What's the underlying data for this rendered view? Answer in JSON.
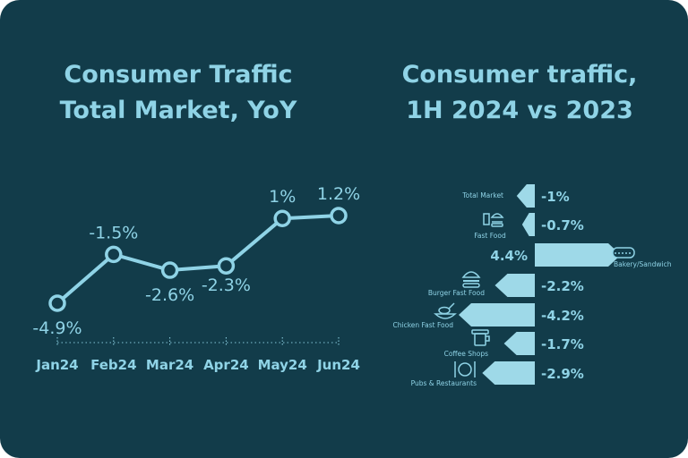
{
  "colors": {
    "background": "#123c4a",
    "accent": "#8fd3e6",
    "bar_fill": "#9ed9e8"
  },
  "left_title": [
    "Consumer Traffic",
    "Total Market, YoY"
  ],
  "right_title": [
    "Consumer traffic,",
    "1H 2024 vs 2023"
  ],
  "chart_data": [
    {
      "type": "line",
      "title": "Consumer Traffic Total Market, YoY",
      "categories": [
        "Jan24",
        "Feb24",
        "Mar24",
        "Apr24",
        "May24",
        "Jun24"
      ],
      "values": [
        -4.9,
        -1.5,
        -2.6,
        -2.3,
        1,
        1.2
      ],
      "data_labels": [
        "-4.9%",
        "-1.5%",
        "-2.6%",
        "-2.3%",
        "1%",
        "1.2%"
      ],
      "ylim": [
        -4.9,
        1.2
      ],
      "grid": false
    },
    {
      "type": "bar",
      "orientation": "horizontal",
      "title": "Consumer traffic, 1H 2024 vs 2023",
      "categories": [
        "Total Market",
        "Fast Food",
        "Bakery/Sandwich",
        "Burger Fast Food",
        "Chicken Fast Food",
        "Coffee Shops",
        "Pubs & Restaurants"
      ],
      "icons": [
        "",
        "fast-food-icon",
        "sandwich-icon",
        "burger-icon",
        "chicken-icon",
        "coffee-icon",
        "plate-cutlery-icon"
      ],
      "values": [
        -1,
        -0.7,
        4.4,
        -2.2,
        -4.2,
        -1.7,
        -2.9
      ],
      "data_labels": [
        "-1%",
        "-0.7%",
        "4.4%",
        "-2.2%",
        "-4.2%",
        "-1.7%",
        "-2.9%"
      ],
      "xlim": [
        -4.2,
        4.4
      ]
    }
  ]
}
